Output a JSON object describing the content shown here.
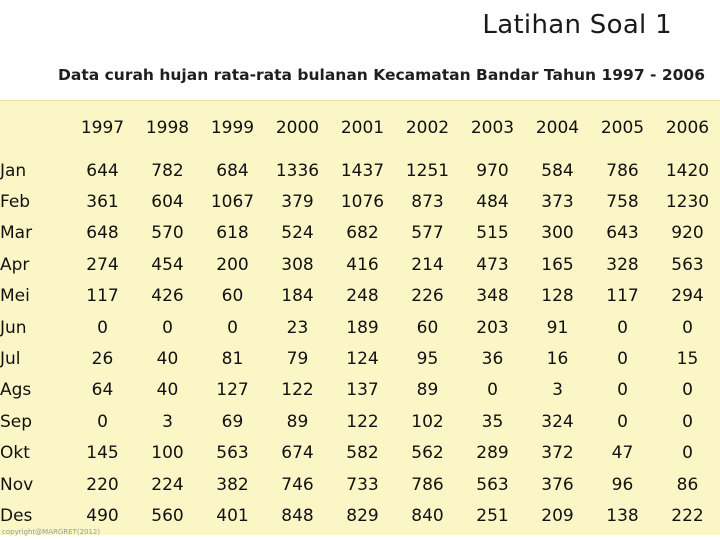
{
  "slide": {
    "title": "Latihan Soal 1",
    "subtitle": "Data curah hujan rata-rata bulanan Kecamatan Bandar  Tahun 1997 - 2006",
    "footer": "copyright@MARGRET(2012)"
  },
  "table": {
    "years": [
      "1997",
      "1998",
      "1999",
      "2000",
      "2001",
      "2002",
      "2003",
      "2004",
      "2005",
      "2006"
    ],
    "rows": [
      {
        "month": "Jan",
        "values": [
          "644",
          "782",
          "684",
          "1336",
          "1437",
          "1251",
          "970",
          "584",
          "786",
          "1420"
        ]
      },
      {
        "month": "Feb",
        "values": [
          "361",
          "604",
          "1067",
          "379",
          "1076",
          "873",
          "484",
          "373",
          "758",
          "1230"
        ]
      },
      {
        "month": "Mar",
        "values": [
          "648",
          "570",
          "618",
          "524",
          "682",
          "577",
          "515",
          "300",
          "643",
          "920"
        ]
      },
      {
        "month": "Apr",
        "values": [
          "274",
          "454",
          "200",
          "308",
          "416",
          "214",
          "473",
          "165",
          "328",
          "563"
        ]
      },
      {
        "month": "Mei",
        "values": [
          "117",
          "426",
          "60",
          "184",
          "248",
          "226",
          "348",
          "128",
          "117",
          "294"
        ]
      },
      {
        "month": "Jun",
        "values": [
          "0",
          "0",
          "0",
          "23",
          "189",
          "60",
          "203",
          "91",
          "0",
          "0"
        ]
      },
      {
        "month": "Jul",
        "values": [
          "26",
          "40",
          "81",
          "79",
          "124",
          "95",
          "36",
          "16",
          "0",
          "15"
        ]
      },
      {
        "month": "Ags",
        "values": [
          "64",
          "40",
          "127",
          "122",
          "137",
          "89",
          "0",
          "3",
          "0",
          "0"
        ]
      },
      {
        "month": "Sep",
        "values": [
          "0",
          "3",
          "69",
          "89",
          "122",
          "102",
          "35",
          "324",
          "0",
          "0"
        ]
      },
      {
        "month": "Okt",
        "values": [
          "145",
          "100",
          "563",
          "674",
          "582",
          "562",
          "289",
          "372",
          "47",
          "0"
        ]
      },
      {
        "month": "Nov",
        "values": [
          "220",
          "224",
          "382",
          "746",
          "733",
          "786",
          "563",
          "376",
          "96",
          "86"
        ]
      },
      {
        "month": "Des",
        "values": [
          "490",
          "560",
          "401",
          "848",
          "829",
          "840",
          "251",
          "209",
          "138",
          "222"
        ]
      }
    ]
  },
  "colors": {
    "table_background": "#fbf6c6",
    "text": "#111111"
  }
}
